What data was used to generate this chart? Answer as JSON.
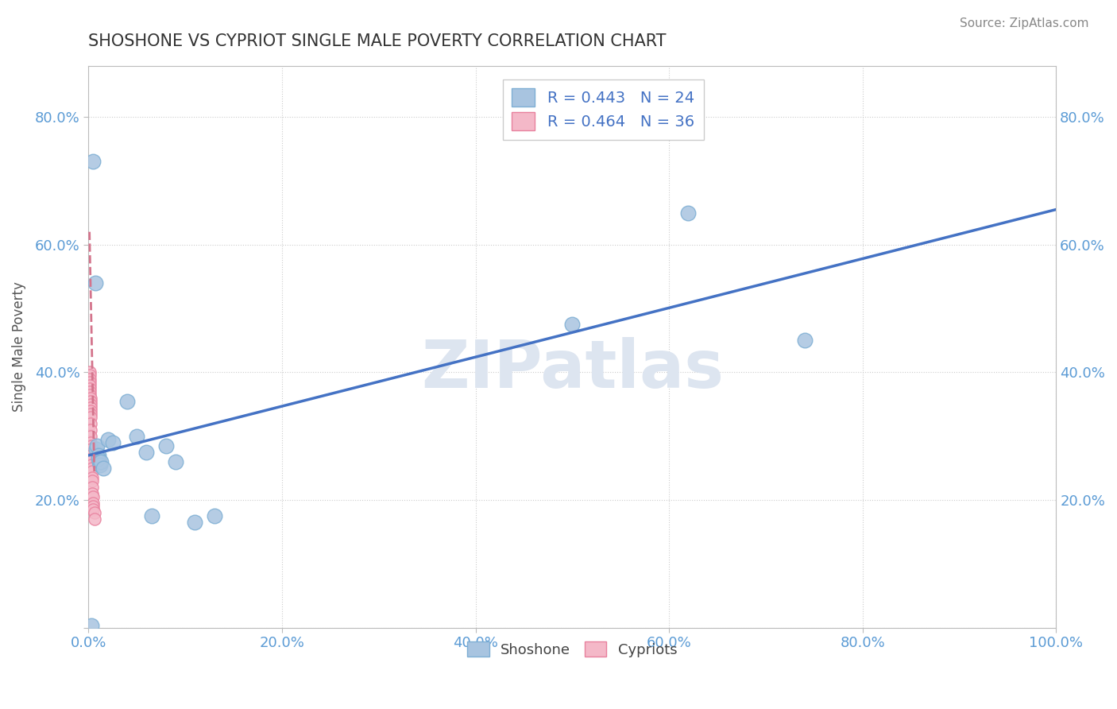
{
  "title": "SHOSHONE VS CYPRIOT SINGLE MALE POVERTY CORRELATION CHART",
  "source": "Source: ZipAtlas.com",
  "xlabel": "",
  "ylabel": "Single Male Poverty",
  "shoshone_R": 0.443,
  "shoshone_N": 24,
  "cypriot_R": 0.464,
  "cypriot_N": 36,
  "shoshone_x": [
    0.003,
    0.005,
    0.007,
    0.008,
    0.009,
    0.01,
    0.01,
    0.011,
    0.012,
    0.013,
    0.015,
    0.02,
    0.025,
    0.04,
    0.05,
    0.06,
    0.065,
    0.08,
    0.09,
    0.11,
    0.13,
    0.5,
    0.62,
    0.74
  ],
  "shoshone_y": [
    0.004,
    0.73,
    0.54,
    0.28,
    0.285,
    0.27,
    0.265,
    0.26,
    0.255,
    0.26,
    0.25,
    0.295,
    0.29,
    0.355,
    0.3,
    0.275,
    0.175,
    0.285,
    0.26,
    0.165,
    0.175,
    0.475,
    0.65,
    0.45
  ],
  "cypriot_x": [
    0.001,
    0.001,
    0.001,
    0.001,
    0.0015,
    0.0015,
    0.0015,
    0.0015,
    0.002,
    0.002,
    0.002,
    0.002,
    0.002,
    0.002,
    0.0025,
    0.0025,
    0.0025,
    0.0025,
    0.0025,
    0.003,
    0.003,
    0.003,
    0.003,
    0.003,
    0.0035,
    0.0035,
    0.0035,
    0.004,
    0.004,
    0.004,
    0.0045,
    0.0045,
    0.005,
    0.005,
    0.006,
    0.006
  ],
  "cypriot_y": [
    0.4,
    0.395,
    0.39,
    0.385,
    0.38,
    0.375,
    0.37,
    0.365,
    0.36,
    0.355,
    0.35,
    0.345,
    0.34,
    0.335,
    0.33,
    0.32,
    0.31,
    0.3,
    0.29,
    0.285,
    0.28,
    0.27,
    0.265,
    0.255,
    0.25,
    0.245,
    0.235,
    0.23,
    0.22,
    0.21,
    0.205,
    0.195,
    0.19,
    0.185,
    0.18,
    0.17
  ],
  "trend_blue_x0": 0.0,
  "trend_blue_y0": 0.27,
  "trend_blue_x1": 1.0,
  "trend_blue_y1": 0.655,
  "trend_pink_x0": 0.001,
  "trend_pink_y0": 0.62,
  "trend_pink_x1": 0.006,
  "trend_pink_y1": 0.245,
  "xlim": [
    0.0,
    1.0
  ],
  "ylim": [
    0.0,
    0.88
  ],
  "xticks": [
    0.0,
    0.2,
    0.4,
    0.6,
    0.8,
    1.0
  ],
  "xticklabels": [
    "0.0%",
    "20.0%",
    "40.0%",
    "60.0%",
    "80.0%",
    "100.0%"
  ],
  "yticks": [
    0.0,
    0.2,
    0.4,
    0.6,
    0.8
  ],
  "yticklabels_left": [
    "",
    "20.0%",
    "40.0%",
    "60.0%",
    "80.0%"
  ],
  "yticklabels_right": [
    "",
    "20.0%",
    "40.0%",
    "60.0%",
    "80.0%"
  ],
  "shoshone_color": "#a8c4e0",
  "shoshone_edge": "#7fafd4",
  "cypriot_color": "#f4b8c8",
  "cypriot_edge": "#e8819e",
  "trend_blue": "#4472c4",
  "trend_pink": "#d4748c",
  "grid_color": "#cccccc",
  "title_color": "#333333",
  "axis_label_color": "#5b9bd5",
  "watermark_color": "#dde5f0"
}
